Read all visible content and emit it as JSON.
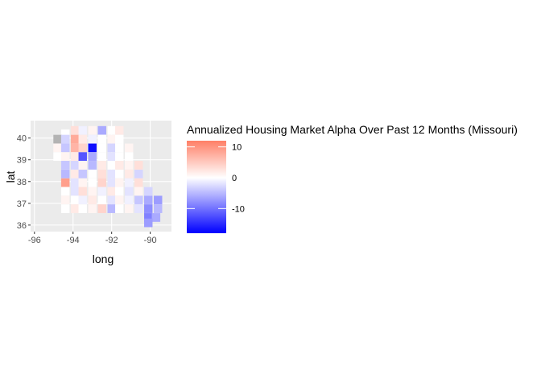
{
  "map": {
    "x_axis_label": "long",
    "y_axis_label": "lat",
    "x_ticks": [
      {
        "value": -96,
        "label": "-96"
      },
      {
        "value": -94,
        "label": "-94"
      },
      {
        "value": -92,
        "label": "-92"
      },
      {
        "value": -90,
        "label": "-90"
      }
    ],
    "y_ticks": [
      {
        "value": 36,
        "label": "36"
      },
      {
        "value": 37,
        "label": "37"
      },
      {
        "value": 38,
        "label": "38"
      },
      {
        "value": 39,
        "label": "39"
      },
      {
        "value": 40,
        "label": "40"
      }
    ],
    "xlim": [
      -96.2,
      -88.9
    ],
    "ylim": [
      35.7,
      40.8
    ],
    "panel_background": "#ebebeb",
    "grid_color": "#ffffff",
    "missing_value_color": "#b3b3b3"
  },
  "legend": {
    "title": "Annualized Housing Market Alpha Over Past 12 Months (Missouri)",
    "ticks": [
      {
        "value": 10,
        "label": "10"
      },
      {
        "value": 0,
        "label": "0"
      },
      {
        "value": -10,
        "label": "-10"
      }
    ],
    "range": [
      -18,
      12
    ],
    "low_color": "#0000ff",
    "mid_color": "#ffffff",
    "high_color": "#ff7f66"
  },
  "chart_data": {
    "type": "choropleth",
    "region": "Missouri",
    "fill_variable": "Annualized Housing Market Alpha Over Past 12 Months",
    "counties": [
      {
        "lon": -94.4,
        "lat": 40.2,
        "value": 0
      },
      {
        "lon": -93.9,
        "lat": 40.35,
        "value": 3
      },
      {
        "lon": -93.5,
        "lat": 40.35,
        "value": -1
      },
      {
        "lon": -93.0,
        "lat": 40.35,
        "value": 1
      },
      {
        "lon": -92.5,
        "lat": 40.35,
        "value": -6
      },
      {
        "lon": -92.0,
        "lat": 40.35,
        "value": 0
      },
      {
        "lon": -91.6,
        "lat": 40.35,
        "value": 2
      },
      {
        "lon": -94.8,
        "lat": 39.95,
        "value": null
      },
      {
        "lon": -94.4,
        "lat": 39.95,
        "value": -3
      },
      {
        "lon": -93.9,
        "lat": 39.95,
        "value": 8
      },
      {
        "lon": -93.5,
        "lat": 39.95,
        "value": 2
      },
      {
        "lon": -93.0,
        "lat": 39.95,
        "value": -1
      },
      {
        "lon": -92.5,
        "lat": 39.95,
        "value": 0
      },
      {
        "lon": -92.0,
        "lat": 39.95,
        "value": 1
      },
      {
        "lon": -91.6,
        "lat": 39.95,
        "value": 0
      },
      {
        "lon": -94.8,
        "lat": 39.55,
        "value": 1
      },
      {
        "lon": -94.4,
        "lat": 39.55,
        "value": -4
      },
      {
        "lon": -93.9,
        "lat": 39.55,
        "value": 7
      },
      {
        "lon": -93.5,
        "lat": 39.55,
        "value": 4
      },
      {
        "lon": -93.0,
        "lat": 39.55,
        "value": -17
      },
      {
        "lon": -92.5,
        "lat": 39.55,
        "value": 0
      },
      {
        "lon": -92.0,
        "lat": 39.55,
        "value": -3
      },
      {
        "lon": -91.6,
        "lat": 39.55,
        "value": 0
      },
      {
        "lon": -91.1,
        "lat": 39.55,
        "value": 1
      },
      {
        "lon": -94.8,
        "lat": 39.15,
        "value": 0
      },
      {
        "lon": -94.4,
        "lat": 39.15,
        "value": 1
      },
      {
        "lon": -93.9,
        "lat": 39.15,
        "value": 2
      },
      {
        "lon": -93.5,
        "lat": 39.15,
        "value": -12
      },
      {
        "lon": -93.0,
        "lat": 39.15,
        "value": -6
      },
      {
        "lon": -92.5,
        "lat": 39.15,
        "value": 0
      },
      {
        "lon": -92.0,
        "lat": 39.15,
        "value": -2
      },
      {
        "lon": -91.6,
        "lat": 39.15,
        "value": 0
      },
      {
        "lon": -91.1,
        "lat": 39.15,
        "value": 0
      },
      {
        "lon": -94.4,
        "lat": 38.75,
        "value": -4
      },
      {
        "lon": -93.9,
        "lat": 38.75,
        "value": -3
      },
      {
        "lon": -93.5,
        "lat": 38.75,
        "value": 1
      },
      {
        "lon": -93.0,
        "lat": 38.75,
        "value": -5
      },
      {
        "lon": -92.5,
        "lat": 38.75,
        "value": 2
      },
      {
        "lon": -92.0,
        "lat": 38.75,
        "value": 0
      },
      {
        "lon": -91.6,
        "lat": 38.75,
        "value": 2
      },
      {
        "lon": -91.1,
        "lat": 38.75,
        "value": 1
      },
      {
        "lon": -90.6,
        "lat": 38.75,
        "value": 3
      },
      {
        "lon": -94.4,
        "lat": 38.35,
        "value": -5
      },
      {
        "lon": -93.9,
        "lat": 38.35,
        "value": 2
      },
      {
        "lon": -93.5,
        "lat": 38.35,
        "value": -4
      },
      {
        "lon": -93.0,
        "lat": 38.35,
        "value": 0
      },
      {
        "lon": -92.5,
        "lat": 38.35,
        "value": 3
      },
      {
        "lon": -92.0,
        "lat": 38.35,
        "value": -2
      },
      {
        "lon": -91.6,
        "lat": 38.35,
        "value": 0
      },
      {
        "lon": -91.1,
        "lat": 38.35,
        "value": 2
      },
      {
        "lon": -90.6,
        "lat": 38.35,
        "value": -3
      },
      {
        "lon": -94.4,
        "lat": 37.95,
        "value": 9
      },
      {
        "lon": -93.9,
        "lat": 37.95,
        "value": -2
      },
      {
        "lon": -93.5,
        "lat": 37.95,
        "value": 1
      },
      {
        "lon": -93.0,
        "lat": 37.95,
        "value": 0
      },
      {
        "lon": -92.5,
        "lat": 37.95,
        "value": 4
      },
      {
        "lon": -92.0,
        "lat": 37.95,
        "value": -2
      },
      {
        "lon": -91.6,
        "lat": 37.95,
        "value": 1
      },
      {
        "lon": -91.1,
        "lat": 37.95,
        "value": -1
      },
      {
        "lon": -90.6,
        "lat": 37.95,
        "value": 3
      },
      {
        "lon": -94.4,
        "lat": 37.55,
        "value": 0
      },
      {
        "lon": -93.9,
        "lat": 37.55,
        "value": -2
      },
      {
        "lon": -93.5,
        "lat": 37.55,
        "value": 3
      },
      {
        "lon": -93.0,
        "lat": 37.55,
        "value": 1
      },
      {
        "lon": -92.5,
        "lat": 37.55,
        "value": -1
      },
      {
        "lon": -92.0,
        "lat": 37.55,
        "value": 2
      },
      {
        "lon": -91.6,
        "lat": 37.55,
        "value": 0
      },
      {
        "lon": -91.1,
        "lat": 37.55,
        "value": -2
      },
      {
        "lon": -90.6,
        "lat": 37.55,
        "value": 1
      },
      {
        "lon": -90.1,
        "lat": 37.55,
        "value": -3
      },
      {
        "lon": -94.4,
        "lat": 37.15,
        "value": 1
      },
      {
        "lon": -93.9,
        "lat": 37.15,
        "value": 0
      },
      {
        "lon": -93.5,
        "lat": 37.15,
        "value": -1
      },
      {
        "lon": -93.0,
        "lat": 37.15,
        "value": 2
      },
      {
        "lon": -92.5,
        "lat": 37.15,
        "value": 0
      },
      {
        "lon": -92.0,
        "lat": 37.15,
        "value": -2
      },
      {
        "lon": -91.6,
        "lat": 37.15,
        "value": 1
      },
      {
        "lon": -91.1,
        "lat": 37.15,
        "value": -1
      },
      {
        "lon": -90.6,
        "lat": 37.15,
        "value": -4
      },
      {
        "lon": -90.1,
        "lat": 37.15,
        "value": -6
      },
      {
        "lon": -89.6,
        "lat": 37.15,
        "value": -7
      },
      {
        "lon": -94.4,
        "lat": 36.75,
        "value": 0
      },
      {
        "lon": -93.9,
        "lat": 36.75,
        "value": 2
      },
      {
        "lon": -93.5,
        "lat": 36.75,
        "value": 0
      },
      {
        "lon": -93.0,
        "lat": 36.75,
        "value": 1
      },
      {
        "lon": -92.5,
        "lat": 36.75,
        "value": 4
      },
      {
        "lon": -92.0,
        "lat": 36.75,
        "value": -5
      },
      {
        "lon": -91.6,
        "lat": 36.75,
        "value": 0
      },
      {
        "lon": -91.1,
        "lat": 36.75,
        "value": 1
      },
      {
        "lon": -90.6,
        "lat": 36.75,
        "value": -2
      },
      {
        "lon": -90.1,
        "lat": 36.75,
        "value": -8
      },
      {
        "lon": -89.6,
        "lat": 36.75,
        "value": -5
      },
      {
        "lon": -90.1,
        "lat": 36.35,
        "value": -9
      },
      {
        "lon": -89.7,
        "lat": 36.35,
        "value": -6
      },
      {
        "lon": -90.1,
        "lat": 36.1,
        "value": -7
      }
    ]
  }
}
